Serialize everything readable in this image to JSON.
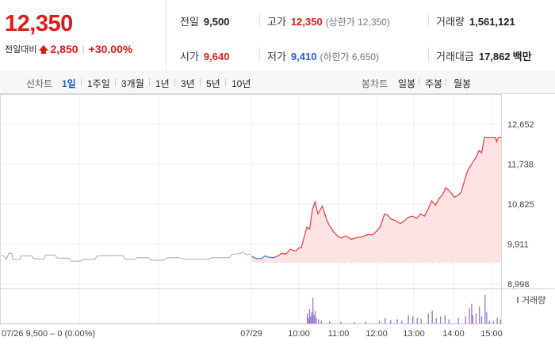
{
  "quote": {
    "current_price": "12,350",
    "change_label": "전일대비",
    "change_amount": "2,850",
    "change_percent": "+30.00%",
    "prev_close_label": "전일",
    "prev_close": "9,500",
    "open_label": "시가",
    "open": "9,640",
    "high_label": "고가",
    "high": "12,350",
    "upper_limit": "(상한가 12,350)",
    "low_label": "저가",
    "low": "9,410",
    "lower_limit": "(하한가 6,650)",
    "volume_label": "거래량",
    "volume": "1,561,121",
    "turnover_label": "거래대금",
    "turnover": "17,862",
    "turnover_unit": "백만",
    "accent_up": "#e01a1a",
    "accent_down": "#1a5fd6"
  },
  "tabs": {
    "line_label": "선차트",
    "line_items": [
      "1일",
      "1주일",
      "3개월",
      "1년",
      "3년",
      "5년",
      "10년"
    ],
    "active_index": 0,
    "candle_label": "봉차트",
    "candle_items": [
      "일봉",
      "주봉",
      "월봉"
    ]
  },
  "chart_data": {
    "type": "line",
    "y_ticks": [
      "12,652",
      "11,738",
      "10,825",
      "9,911",
      "8,998"
    ],
    "y_tick_values": [
      12652,
      11738,
      10825,
      9911,
      8998
    ],
    "ylim": [
      8998,
      12652
    ],
    "prev_close": 9500,
    "x_ticks": [
      "07/29",
      "10:00",
      "11:00",
      "12:00",
      "13:00",
      "14:00",
      "15:00"
    ],
    "prev_day_label": "07/26  9,500 – 0 (0.00%)",
    "volume_legend": "거래량",
    "prev_day_series": [
      {
        "t": 0,
        "v": 9650
      },
      {
        "t": 4,
        "v": 9630
      },
      {
        "t": 6,
        "v": 9560
      },
      {
        "t": 9,
        "v": 9700
      },
      {
        "t": 13,
        "v": 9700
      },
      {
        "t": 14,
        "v": 9560
      },
      {
        "t": 23,
        "v": 9560
      },
      {
        "t": 25,
        "v": 9640
      },
      {
        "t": 38,
        "v": 9640
      },
      {
        "t": 40,
        "v": 9580
      },
      {
        "t": 53,
        "v": 9560
      },
      {
        "t": 56,
        "v": 9660
      },
      {
        "t": 68,
        "v": 9660
      },
      {
        "t": 70,
        "v": 9590
      },
      {
        "t": 85,
        "v": 9590
      },
      {
        "t": 88,
        "v": 9520
      },
      {
        "t": 100,
        "v": 9520
      },
      {
        "t": 103,
        "v": 9560
      },
      {
        "t": 118,
        "v": 9560
      },
      {
        "t": 121,
        "v": 9640
      },
      {
        "t": 140,
        "v": 9650
      },
      {
        "t": 153,
        "v": 9650
      },
      {
        "t": 157,
        "v": 9560
      },
      {
        "t": 168,
        "v": 9560
      },
      {
        "t": 172,
        "v": 9600
      },
      {
        "t": 185,
        "v": 9600
      },
      {
        "t": 190,
        "v": 9540
      },
      {
        "t": 205,
        "v": 9540
      },
      {
        "t": 210,
        "v": 9600
      },
      {
        "t": 225,
        "v": 9600
      },
      {
        "t": 232,
        "v": 9560
      },
      {
        "t": 262,
        "v": 9560
      },
      {
        "t": 266,
        "v": 9600
      },
      {
        "t": 288,
        "v": 9600
      },
      {
        "t": 292,
        "v": 9680
      },
      {
        "t": 300,
        "v": 9690
      },
      {
        "t": 305,
        "v": 9720
      },
      {
        "t": 310,
        "v": 9670
      },
      {
        "t": 315,
        "v": 9680
      }
    ],
    "today_series": [
      {
        "t": 0,
        "v": 9640
      },
      {
        "t": 5,
        "v": 9600
      },
      {
        "t": 10,
        "v": 9580
      },
      {
        "t": 18,
        "v": 9580
      },
      {
        "t": 25,
        "v": 9640
      },
      {
        "t": 32,
        "v": 9610
      },
      {
        "t": 40,
        "v": 9600
      },
      {
        "t": 45,
        "v": 9620
      },
      {
        "t": 55,
        "v": 9700
      },
      {
        "t": 62,
        "v": 9680
      },
      {
        "t": 70,
        "v": 9790
      },
      {
        "t": 80,
        "v": 9750
      },
      {
        "t": 85,
        "v": 9820
      },
      {
        "t": 90,
        "v": 9830
      },
      {
        "t": 100,
        "v": 10300
      },
      {
        "t": 105,
        "v": 10250
      },
      {
        "t": 110,
        "v": 10700
      },
      {
        "t": 115,
        "v": 10880
      },
      {
        "t": 120,
        "v": 10600
      },
      {
        "t": 128,
        "v": 10780
      },
      {
        "t": 135,
        "v": 10500
      },
      {
        "t": 140,
        "v": 10350
      },
      {
        "t": 148,
        "v": 10200
      },
      {
        "t": 155,
        "v": 10100
      },
      {
        "t": 162,
        "v": 10050
      },
      {
        "t": 170,
        "v": 10100
      },
      {
        "t": 180,
        "v": 10020
      },
      {
        "t": 190,
        "v": 10060
      },
      {
        "t": 200,
        "v": 10080
      },
      {
        "t": 210,
        "v": 10130
      },
      {
        "t": 218,
        "v": 10120
      },
      {
        "t": 225,
        "v": 10200
      },
      {
        "t": 232,
        "v": 10300
      },
      {
        "t": 240,
        "v": 10600
      },
      {
        "t": 245,
        "v": 10580
      },
      {
        "t": 252,
        "v": 10480
      },
      {
        "t": 260,
        "v": 10450
      },
      {
        "t": 268,
        "v": 10380
      },
      {
        "t": 275,
        "v": 10430
      },
      {
        "t": 282,
        "v": 10520
      },
      {
        "t": 290,
        "v": 10550
      },
      {
        "t": 298,
        "v": 10500
      },
      {
        "t": 305,
        "v": 10600
      },
      {
        "t": 312,
        "v": 10550
      },
      {
        "t": 318,
        "v": 10700
      },
      {
        "t": 325,
        "v": 10900
      },
      {
        "t": 332,
        "v": 10800
      },
      {
        "t": 338,
        "v": 10950
      },
      {
        "t": 345,
        "v": 11050
      },
      {
        "t": 350,
        "v": 11200
      },
      {
        "t": 355,
        "v": 11150
      },
      {
        "t": 360,
        "v": 11080
      },
      {
        "t": 366,
        "v": 10980
      },
      {
        "t": 372,
        "v": 11020
      },
      {
        "t": 378,
        "v": 11100
      },
      {
        "t": 385,
        "v": 11400
      },
      {
        "t": 390,
        "v": 11600
      },
      {
        "t": 395,
        "v": 11700
      },
      {
        "t": 400,
        "v": 11800
      },
      {
        "t": 405,
        "v": 11900
      },
      {
        "t": 410,
        "v": 12050
      },
      {
        "t": 415,
        "v": 12000
      },
      {
        "t": 420,
        "v": 12350
      },
      {
        "t": 440,
        "v": 12350
      },
      {
        "t": 442,
        "v": 12250
      },
      {
        "t": 445,
        "v": 12350
      },
      {
        "t": 450,
        "v": 12350
      }
    ],
    "volume_bars": [
      {
        "t": 100,
        "h": 0.35
      },
      {
        "t": 102,
        "h": 0.2
      },
      {
        "t": 104,
        "h": 0.5
      },
      {
        "t": 106,
        "h": 0.25
      },
      {
        "t": 108,
        "h": 0.4
      },
      {
        "t": 110,
        "h": 0.9
      },
      {
        "t": 112,
        "h": 0.3
      },
      {
        "t": 114,
        "h": 0.45
      },
      {
        "t": 116,
        "h": 0.2
      },
      {
        "t": 120,
        "h": 0.15
      },
      {
        "t": 125,
        "h": 0.1
      },
      {
        "t": 140,
        "h": 0.08
      },
      {
        "t": 160,
        "h": 0.06
      },
      {
        "t": 185,
        "h": 0.05
      },
      {
        "t": 205,
        "h": 0.07
      },
      {
        "t": 230,
        "h": 0.1
      },
      {
        "t": 240,
        "h": 0.2
      },
      {
        "t": 250,
        "h": 0.12
      },
      {
        "t": 262,
        "h": 0.15
      },
      {
        "t": 270,
        "h": 0.1
      },
      {
        "t": 282,
        "h": 0.3
      },
      {
        "t": 290,
        "h": 0.25
      },
      {
        "t": 298,
        "h": 0.2
      },
      {
        "t": 305,
        "h": 0.15
      },
      {
        "t": 318,
        "h": 0.35
      },
      {
        "t": 325,
        "h": 0.45
      },
      {
        "t": 332,
        "h": 0.2
      },
      {
        "t": 340,
        "h": 0.25
      },
      {
        "t": 348,
        "h": 0.3
      },
      {
        "t": 355,
        "h": 0.15
      },
      {
        "t": 372,
        "h": 0.2
      },
      {
        "t": 385,
        "h": 0.25
      },
      {
        "t": 392,
        "h": 0.55
      },
      {
        "t": 396,
        "h": 0.7
      },
      {
        "t": 398,
        "h": 0.3
      },
      {
        "t": 404,
        "h": 0.35
      },
      {
        "t": 410,
        "h": 0.6
      },
      {
        "t": 414,
        "h": 0.25
      },
      {
        "t": 420,
        "h": 1.0
      },
      {
        "t": 423,
        "h": 0.4
      },
      {
        "t": 428,
        "h": 0.1
      },
      {
        "t": 435,
        "h": 0.08
      },
      {
        "t": 442,
        "h": 0.2
      },
      {
        "t": 448,
        "h": 0.15
      }
    ]
  }
}
